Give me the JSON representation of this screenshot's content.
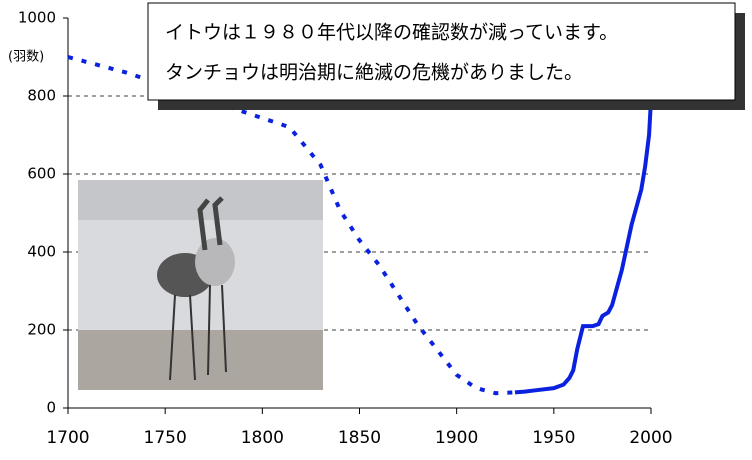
{
  "chart_data": {
    "type": "line",
    "ylabel": "(羽数)",
    "annotation": [
      "イトウは１９８０年代以降の確認数が減っています。",
      "タンチョウは明治期に絶滅の危機がありました。"
    ],
    "xlim": [
      1700,
      2000
    ],
    "xticks": [
      1700,
      1750,
      1800,
      1850,
      1900,
      1950,
      2000
    ],
    "ylim": [
      0,
      1000
    ],
    "yticks": [
      0,
      200,
      400,
      600,
      800,
      1000
    ],
    "grid": true,
    "series": [
      {
        "color": "#0a22e0",
        "dashed": true,
        "x": [
          1700,
          1730,
          1814,
          1830,
          1840,
          1850,
          1860,
          1870,
          1880,
          1890,
          1900,
          1910,
          1920,
          1930
        ],
        "values": [
          900,
          860,
          720,
          623,
          507,
          430,
          367,
          290,
          213,
          149,
          85,
          51,
          38,
          40
        ]
      },
      {
        "color": "#0a22e0",
        "dashed": false,
        "x": [
          1930,
          1935,
          1940,
          1950,
          1955,
          1958,
          1960,
          1962,
          1965,
          1970,
          1973,
          1975,
          1978,
          1980,
          1985,
          1990,
          1995,
          1997,
          1999,
          2000
        ],
        "values": [
          40,
          42,
          45,
          51,
          60,
          77,
          97,
          150,
          210,
          210,
          215,
          236,
          245,
          264,
          354,
          470,
          560,
          620,
          700,
          790
        ]
      }
    ]
  }
}
